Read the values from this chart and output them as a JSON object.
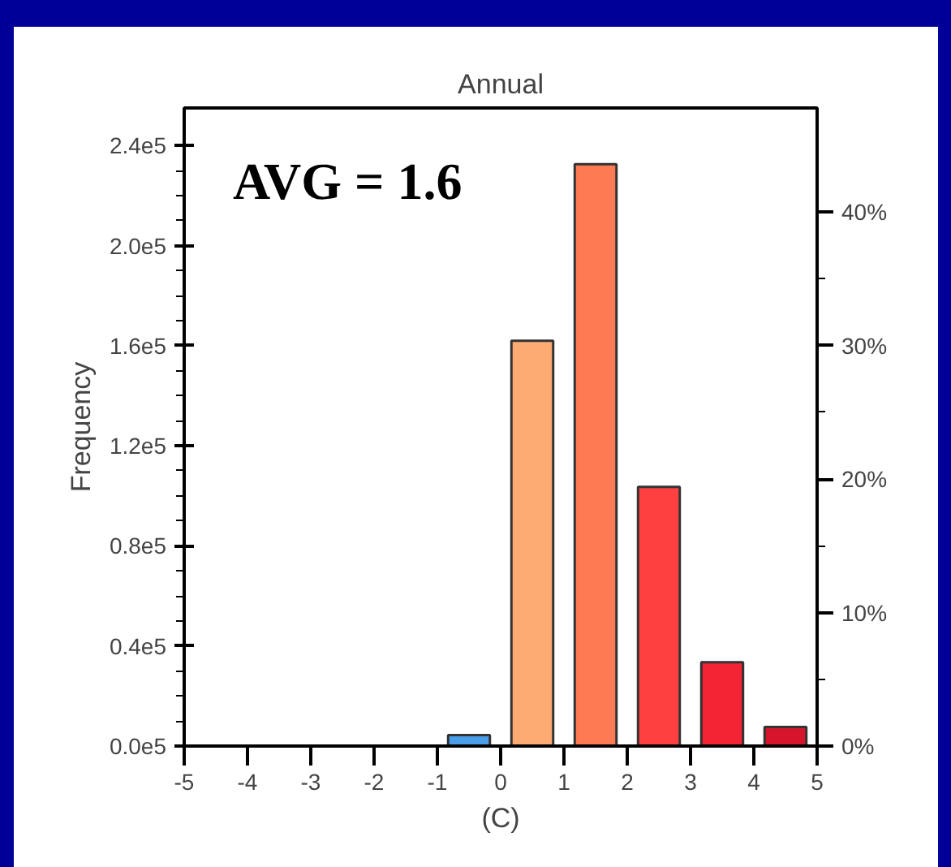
{
  "chart_data": {
    "type": "histogram",
    "title": "Annual",
    "xlabel": "(C)",
    "ylabel": "Frequency",
    "bins": [
      -5,
      -4,
      -3,
      -2,
      -1,
      0,
      1,
      2,
      3,
      4,
      5
    ],
    "values": [
      0,
      0,
      0,
      0,
      4400,
      162000,
      232500,
      103600,
      33500,
      7600
    ],
    "colors": [
      "#4a9ee8",
      "#4a9ee8",
      "#4a9ee8",
      "#4a9ee8",
      "#4a9ee8",
      "#fdab72",
      "#fe7a52",
      "#ff4040",
      "#f52433",
      "#d6152d"
    ],
    "xlim": [
      -5,
      5
    ],
    "xticks": [
      -5,
      -4,
      -3,
      -2,
      -1,
      0,
      1,
      2,
      3,
      4,
      5
    ],
    "ylim": [
      0,
      255000
    ],
    "yticks": [
      {
        "value": 0,
        "label": "0.0e5"
      },
      {
        "value": 40000,
        "label": "0.4e5"
      },
      {
        "value": 80000,
        "label": "0.8e5"
      },
      {
        "value": 120000,
        "label": "1.2e5"
      },
      {
        "value": 160000,
        "label": "1.6e5"
      },
      {
        "value": 200000,
        "label": "2.0e5"
      },
      {
        "value": 240000,
        "label": "2.4e5"
      }
    ],
    "y2lim": [
      0,
      47.8
    ],
    "y2ticks": [
      {
        "value": 0,
        "label": "0%"
      },
      {
        "value": 10,
        "label": "10%"
      },
      {
        "value": 20,
        "label": "20%"
      },
      {
        "value": 30,
        "label": "30%"
      },
      {
        "value": 40,
        "label": "40%"
      }
    ],
    "annotations": [
      "AVG = 1.6"
    ],
    "grid": false
  }
}
